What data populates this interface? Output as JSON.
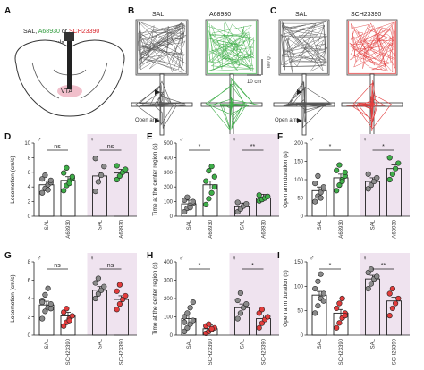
{
  "panel_labels": [
    "A",
    "B",
    "C",
    "D",
    "E",
    "F",
    "G",
    "H",
    "I"
  ],
  "panel_a": {
    "agonist": "SAL, A68930 or SCH23390",
    "sal_part": "SAL, ",
    "a68930_part": "A68930",
    "or_part": " or ",
    "sch_part": "SCH23390",
    "cannula": "Cannula",
    "region": "VTA"
  },
  "panel_b": {
    "left": "SAL",
    "right": "A68930",
    "scale_h": "10 cm",
    "scale_v": "10 cm",
    "open_arm": "Open arm"
  },
  "panel_c": {
    "left": "SAL",
    "right": "SCH23390",
    "open_arm": "Open arm"
  },
  "sex": {
    "male": "♂",
    "female": "♀"
  },
  "colors": {
    "sal": "#8a8a8a",
    "a68930": "#3fae49",
    "sch23390": "#e23c3c",
    "female_bg": "#efe3ef",
    "a68930_text": "#2e9a3b",
    "sch_text": "#d9272e",
    "vta": "#e58aa0"
  },
  "chart_data": [
    {
      "panel": "D",
      "type": "scatter",
      "ylabel": "Locomotion (cm/s)",
      "ylim": [
        0,
        10
      ],
      "yticks": [
        "0",
        "2",
        "4",
        "6",
        "8",
        "10"
      ],
      "groups": [
        {
          "sex": "male",
          "sig": "ns",
          "categories": [
            "SAL",
            "A68930"
          ],
          "means": [
            4.3,
            4.9
          ],
          "points": [
            [
              3.2,
              3.8,
              4.3,
              4.6,
              5.1,
              5.6,
              3.6,
              4.9
            ],
            [
              3.5,
              4.2,
              4.8,
              5.2,
              5.9,
              6.6,
              4.5,
              5.4
            ]
          ]
        },
        {
          "sex": "female",
          "sig": "ns",
          "categories": [
            "SAL",
            "A68930"
          ],
          "means": [
            5.5,
            5.9
          ],
          "points": [
            [
              3.4,
              4.7,
              5.6,
              6.8,
              7.9
            ],
            [
              5.0,
              5.5,
              6.0,
              6.4,
              6.9
            ]
          ]
        }
      ]
    },
    {
      "panel": "E",
      "type": "scatter",
      "ylabel": "Time at the center region (s)",
      "ylim": [
        0,
        500
      ],
      "yticks": [
        "0",
        "100",
        "200",
        "300",
        "400",
        "500"
      ],
      "groups": [
        {
          "sex": "male",
          "sig": "*",
          "categories": [
            "SAL",
            "A68930"
          ],
          "means": [
            85,
            215
          ],
          "points": [
            [
              30,
              55,
              75,
              90,
              110,
              130,
              60,
              100
            ],
            [
              80,
              120,
              160,
              200,
              240,
              310,
              340,
              270
            ]
          ]
        },
        {
          "sex": "female",
          "sig": "**",
          "categories": [
            "SAL",
            "A68930"
          ],
          "means": [
            65,
            125
          ],
          "points": [
            [
              30,
              50,
              70,
              85,
              95
            ],
            [
              105,
              115,
              125,
              135,
              145
            ]
          ]
        }
      ]
    },
    {
      "panel": "F",
      "type": "scatter",
      "ylabel": "Open arm duration (s)",
      "ylim": [
        0,
        200
      ],
      "yticks": [
        "0",
        "50",
        "100",
        "150",
        "200"
      ],
      "groups": [
        {
          "sex": "male",
          "sig": "*",
          "categories": [
            "SAL",
            "A68930"
          ],
          "means": [
            70,
            105
          ],
          "points": [
            [
              40,
              55,
              65,
              75,
              90,
              110,
              50,
              80
            ],
            [
              70,
              85,
              100,
              110,
              125,
              140,
              95,
              120
            ]
          ]
        },
        {
          "sex": "female",
          "sig": "*",
          "categories": [
            "SAL",
            "A68930"
          ],
          "means": [
            95,
            130
          ],
          "points": [
            [
              75,
              85,
              95,
              105,
              115
            ],
            [
              100,
              115,
              130,
              145,
              160
            ]
          ]
        }
      ]
    },
    {
      "panel": "G",
      "type": "scatter",
      "ylabel": "Locomotion (cm/s)",
      "ylim": [
        0,
        8
      ],
      "yticks": [
        "0",
        "2",
        "4",
        "6",
        "8"
      ],
      "groups": [
        {
          "sex": "male",
          "sig": "ns",
          "categories": [
            "SAL",
            "SCH23390"
          ],
          "means": [
            3.3,
            2.1
          ],
          "points": [
            [
              1.8,
              2.6,
              3.0,
              3.4,
              3.8,
              4.4,
              5.1,
              2.9,
              3.6
            ],
            [
              1.0,
              1.4,
              1.8,
              2.1,
              2.5,
              2.9,
              1.6
            ]
          ]
        },
        {
          "sex": "female",
          "sig": "ns",
          "categories": [
            "SAL",
            "SCH23390"
          ],
          "means": [
            4.9,
            3.9
          ],
          "points": [
            [
              4.0,
              4.5,
              4.9,
              5.3,
              5.7,
              6.2
            ],
            [
              2.8,
              3.4,
              3.9,
              4.3,
              4.8,
              5.5
            ]
          ]
        }
      ]
    },
    {
      "panel": "H",
      "type": "scatter",
      "ylabel": "Time at the center region (s)",
      "ylim": [
        0,
        400
      ],
      "yticks": [
        "0",
        "100",
        "200",
        "300",
        "400"
      ],
      "groups": [
        {
          "sex": "male",
          "sig": "*",
          "categories": [
            "SAL",
            "SCH23390"
          ],
          "means": [
            90,
            35
          ],
          "points": [
            [
              20,
              40,
              60,
              80,
              100,
              120,
              150,
              180,
              70
            ],
            [
              10,
              20,
              30,
              40,
              50,
              60,
              35
            ]
          ]
        },
        {
          "sex": "female",
          "sig": "*",
          "categories": [
            "SAL",
            "SCH23390"
          ],
          "means": [
            150,
            90
          ],
          "points": [
            [
              90,
              120,
              150,
              170,
              190,
              230
            ],
            [
              40,
              65,
              85,
              100,
              120,
              140
            ]
          ]
        }
      ]
    },
    {
      "panel": "I",
      "type": "scatter",
      "ylabel": "Open arm duration (s)",
      "ylim": [
        0,
        150
      ],
      "yticks": [
        "0",
        "50",
        "100",
        "150"
      ],
      "groups": [
        {
          "sex": "male",
          "sig": "*",
          "categories": [
            "SAL",
            "SCH23390"
          ],
          "means": [
            82,
            45
          ],
          "points": [
            [
              45,
              60,
              75,
              85,
              95,
              110,
              125,
              70
            ],
            [
              15,
              25,
              35,
              45,
              55,
              65,
              75,
              40
            ]
          ]
        },
        {
          "sex": "female",
          "sig": "**",
          "categories": [
            "SAL",
            "SCH23390"
          ],
          "means": [
            115,
            70
          ],
          "points": [
            [
              95,
              105,
              115,
              120,
              128,
              135
            ],
            [
              40,
              55,
              65,
              75,
              85,
              95
            ]
          ]
        }
      ]
    }
  ]
}
